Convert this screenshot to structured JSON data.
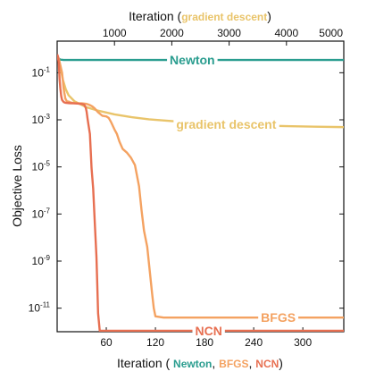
{
  "chart_data": {
    "type": "line",
    "title": "",
    "ylabel": "Objective Loss",
    "yscale": "log",
    "ylim": [
      1e-12,
      1
    ],
    "y_ticks": [
      {
        "value": 0.1,
        "base": "10",
        "exp": "-1"
      },
      {
        "value": 0.001,
        "base": "10",
        "exp": "-3"
      },
      {
        "value": 1e-05,
        "base": "10",
        "exp": "-5"
      },
      {
        "value": 1e-07,
        "base": "10",
        "exp": "-7"
      },
      {
        "value": 1e-09,
        "base": "10",
        "exp": "-9"
      },
      {
        "value": 1e-11,
        "base": "10",
        "exp": "-11"
      }
    ],
    "bottom_axis": {
      "title_prefix": "Iteration (",
      "title_parts": [
        {
          "text": "Newton",
          "color": "#2a9d8f"
        },
        {
          "text": ", ",
          "color": "#111111"
        },
        {
          "text": "BFGS",
          "color": "#f4a261"
        },
        {
          "text": ", ",
          "color": "#111111"
        },
        {
          "text": "NCN",
          "color": "#e76f51"
        }
      ],
      "title_suffix": ")",
      "range": [
        0,
        350
      ],
      "ticks": [
        60,
        120,
        180,
        240,
        300
      ]
    },
    "top_axis": {
      "title_prefix": "Iteration (",
      "title_highlight": "gradient descent",
      "title_highlight_color": "#e9c46a",
      "title_suffix": ")",
      "range": [
        0,
        5000
      ],
      "ticks": [
        1000,
        2000,
        3000,
        4000,
        5000
      ]
    },
    "grid": false,
    "series": [
      {
        "name": "Newton",
        "axis": "bottom",
        "color": "#2a9d8f",
        "label_at": 165,
        "x": [
          0,
          2,
          4,
          8,
          350
        ],
        "y": [
          0.45,
          0.4,
          0.36,
          0.35,
          0.35
        ]
      },
      {
        "name": "gradient descent",
        "axis": "top",
        "color": "#e9c46a",
        "label_at": 2950,
        "x": [
          0,
          50,
          100,
          150,
          200,
          300,
          500,
          700,
          1000,
          1300,
          1600,
          2000,
          2500,
          3000,
          3500,
          4000,
          4500,
          5000
        ],
        "y": [
          0.6,
          0.2,
          0.05,
          0.02,
          0.011,
          0.0062,
          0.0035,
          0.0025,
          0.0017,
          0.0013,
          0.00105,
          0.00088,
          0.00073,
          0.00064,
          0.00058,
          0.00054,
          0.00051,
          0.00049
        ]
      },
      {
        "name": "BFGS",
        "axis": "bottom",
        "color": "#f4a261",
        "label_at": 270,
        "x": [
          0,
          2,
          4,
          6,
          8,
          10,
          12,
          14,
          16,
          20,
          25,
          30,
          35,
          38,
          40,
          43,
          46,
          50,
          55,
          60,
          63,
          66,
          70,
          73,
          76,
          80,
          85,
          90,
          95,
          100,
          103,
          106,
          110,
          113,
          116,
          118,
          120,
          130,
          200,
          300,
          350
        ],
        "y": [
          0.5,
          0.4,
          0.2,
          0.1,
          0.02,
          0.008,
          0.006,
          0.006,
          0.0055,
          0.0052,
          0.005,
          0.005,
          0.0048,
          0.0045,
          0.0042,
          0.0037,
          0.003,
          0.0021,
          0.0015,
          0.0014,
          0.0012,
          0.00078,
          0.00039,
          0.00025,
          0.00012,
          5.8e-05,
          4.1e-05,
          2.5e-05,
          1.2e-05,
          1.5e-06,
          1.5e-07,
          2e-08,
          4e-09,
          4e-10,
          4e-11,
          1e-11,
          4.5e-12,
          4e-12,
          4e-12,
          4e-12,
          4e-12
        ]
      },
      {
        "name": "NCN",
        "axis": "bottom",
        "color": "#e76f51",
        "label_at": 185,
        "x": [
          0,
          1,
          2,
          3,
          4,
          5,
          6,
          8,
          10,
          15,
          20,
          25,
          30,
          33,
          35,
          36,
          37,
          38,
          40,
          42,
          44,
          46,
          48,
          49,
          50,
          52,
          55,
          60,
          120,
          200,
          350
        ],
        "y": [
          0.6,
          0.5,
          0.25,
          0.05,
          0.02,
          0.01,
          0.007,
          0.0057,
          0.0053,
          0.0051,
          0.005,
          0.0049,
          0.0047,
          0.0044,
          0.0032,
          0.0022,
          0.0012,
          0.0007,
          0.00025,
          9e-06,
          1.2e-06,
          4e-08,
          1.5e-09,
          1e-10,
          6e-12,
          1.1e-12,
          1.1e-12,
          1.1e-12,
          1.1e-12,
          1.1e-12,
          1.1e-12
        ]
      }
    ]
  }
}
